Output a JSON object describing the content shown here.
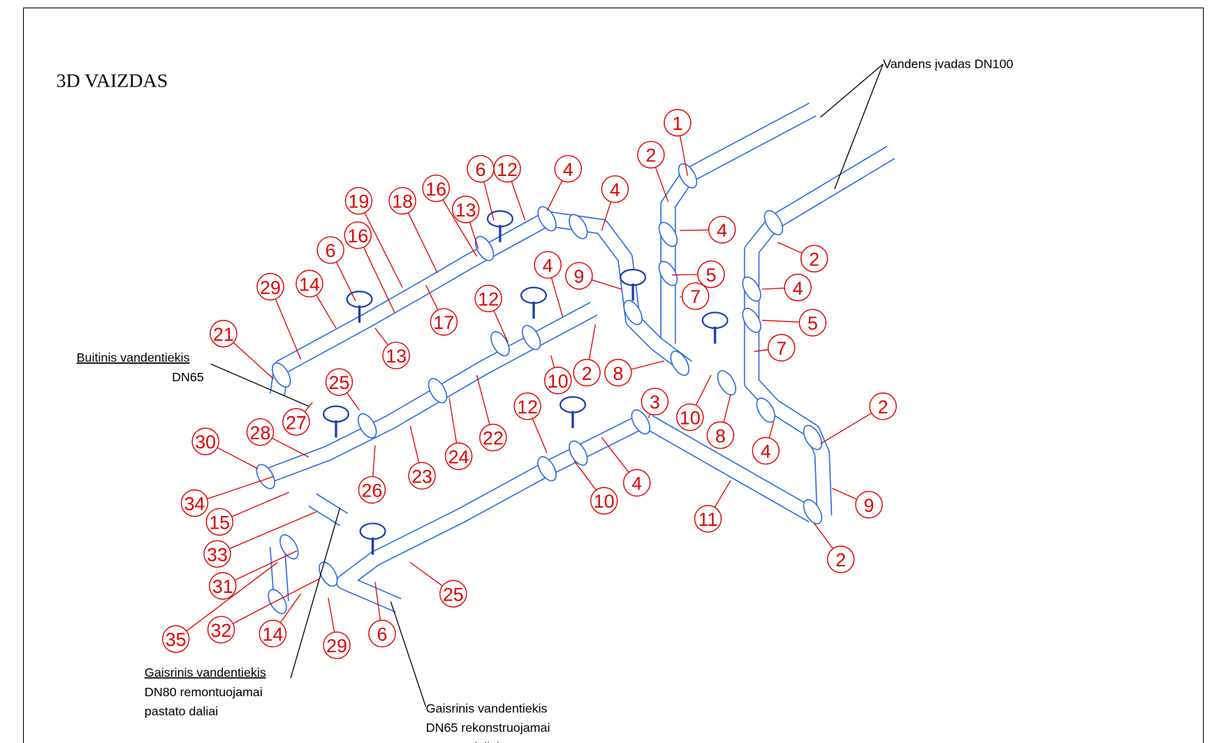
{
  "title": "3D VAIZDAS",
  "notes": [
    {
      "lines": [
        "Vandens įvadas DN100"
      ]
    },
    {
      "lines": [
        "Buitinis vandentiekis",
        "DN65"
      ]
    },
    {
      "lines": [
        "Gaisrinis vandentiekis",
        "DN80 remontuojamai",
        "pastato daliai"
      ]
    },
    {
      "lines": [
        "Gaisrinis vandentiekis",
        "DN65 rekonstruojamai",
        "pastato daliai"
      ]
    }
  ],
  "callouts": [
    "1",
    "2",
    "6",
    "12",
    "4",
    "19",
    "18",
    "16",
    "13",
    "4",
    "4",
    "2",
    "6",
    "16",
    "29",
    "14",
    "9",
    "4",
    "5",
    "4",
    "12",
    "17",
    "21",
    "13",
    "7",
    "5",
    "7",
    "8",
    "10",
    "2",
    "25",
    "27",
    "3",
    "10",
    "8",
    "12",
    "2",
    "30",
    "28",
    "22",
    "24",
    "4",
    "26",
    "23",
    "4",
    "10",
    "9",
    "34",
    "15",
    "11",
    "33",
    "2",
    "25",
    "31",
    "32",
    "35",
    "14",
    "29",
    "6"
  ]
}
